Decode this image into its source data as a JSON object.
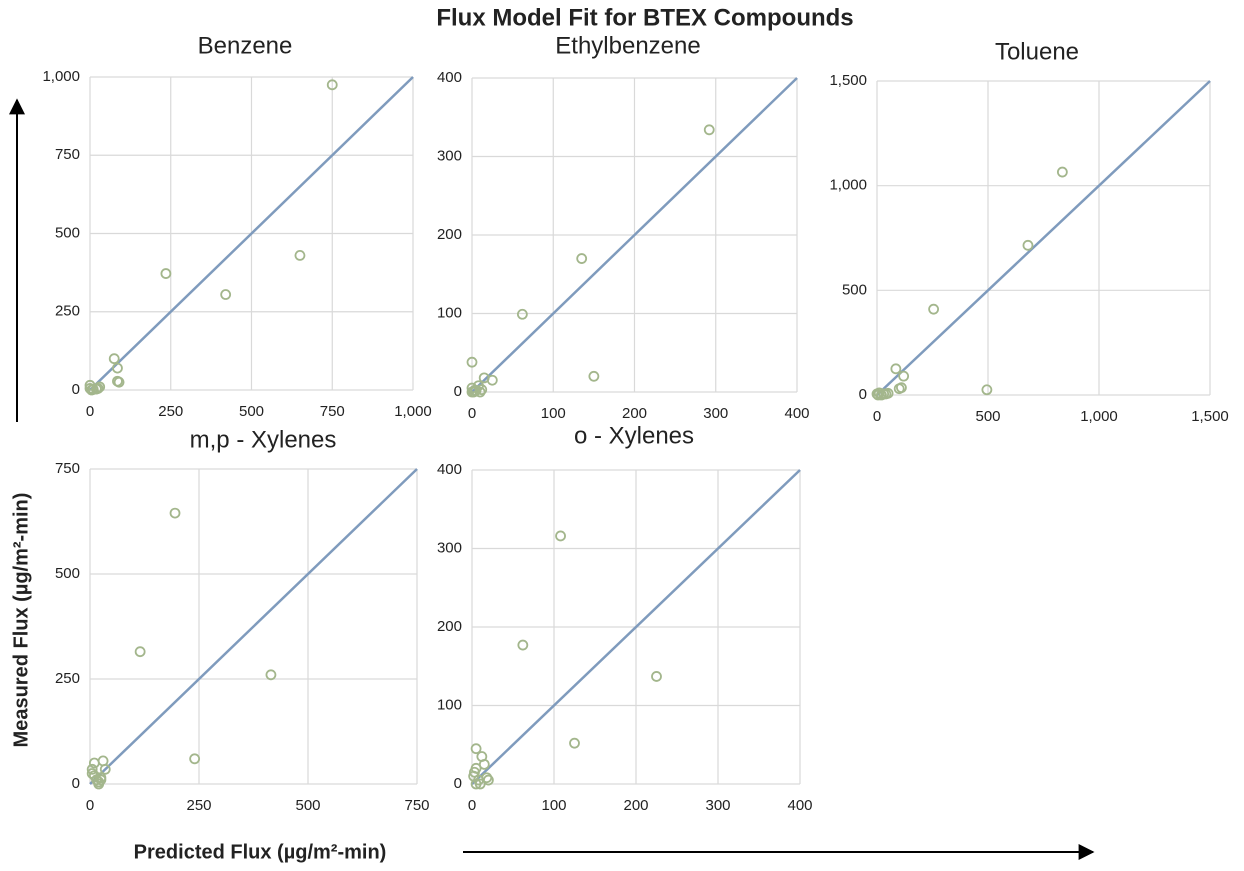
{
  "title": "Flux Model Fit for BTEX Compounds",
  "xlabel": "Predicted Flux (µg/m²-min)",
  "ylabel": "Measured Flux (µg/m²-min)",
  "chart_data": [
    {
      "type": "scatter",
      "title": "Benzene",
      "points": {
        "color": "#a3b68c",
        "x": [
          0,
          0,
          5,
          10,
          25,
          30,
          20,
          75,
          85,
          90,
          85,
          235,
          420,
          650,
          750
        ],
        "y": [
          15,
          5,
          0,
          2,
          5,
          10,
          3,
          100,
          70,
          25,
          28,
          372,
          305,
          430,
          975
        ]
      },
      "fit_line": {
        "color": "#7f9bbd",
        "x": [
          0,
          1000
        ],
        "y": [
          0,
          1000
        ]
      },
      "xlim": [
        0,
        1000
      ],
      "ylim": [
        0,
        1000
      ],
      "xticks": [
        0,
        250,
        500,
        750,
        {
          "value": 1000,
          "label": "1,000"
        }
      ],
      "yticks": [
        0,
        250,
        500,
        750,
        {
          "value": 1000,
          "label": "1,000"
        }
      ],
      "grid": true
    },
    {
      "type": "scatter",
      "title": "Ethylbenzene",
      "points": {
        "color": "#a3b68c",
        "x": [
          0,
          0,
          2,
          5,
          8,
          10,
          15,
          12,
          25,
          62,
          135,
          150,
          292,
          3,
          0
        ],
        "y": [
          38,
          5,
          0,
          2,
          8,
          0,
          18,
          3,
          15,
          99,
          170,
          20,
          334,
          2,
          0
        ]
      },
      "fit_line": {
        "color": "#7f9bbd",
        "x": [
          0,
          400
        ],
        "y": [
          0,
          400
        ]
      },
      "xlim": [
        0,
        400
      ],
      "ylim": [
        0,
        400
      ],
      "xticks": [
        0,
        100,
        200,
        300,
        400
      ],
      "yticks": [
        0,
        100,
        200,
        300,
        400
      ],
      "grid": true
    },
    {
      "type": "scatter",
      "title": "Toluene",
      "points": {
        "color": "#a3b68c",
        "x": [
          0,
          10,
          20,
          30,
          40,
          50,
          85,
          100,
          110,
          120,
          255,
          495,
          680,
          835,
          5
        ],
        "y": [
          5,
          10,
          0,
          5,
          5,
          8,
          125,
          30,
          35,
          90,
          410,
          25,
          715,
          1065,
          0
        ]
      },
      "fit_line": {
        "color": "#7f9bbd",
        "x": [
          0,
          1500
        ],
        "y": [
          0,
          1500
        ]
      },
      "xlim": [
        0,
        1500
      ],
      "ylim": [
        0,
        1500
      ],
      "xticks": [
        0,
        500,
        {
          "value": 1000,
          "label": "1,000"
        },
        {
          "value": 1500,
          "label": "1,500"
        }
      ],
      "yticks": [
        0,
        500,
        {
          "value": 1000,
          "label": "1,000"
        },
        {
          "value": 1500,
          "label": "1,500"
        }
      ],
      "grid": true
    },
    {
      "type": "scatter",
      "title": "m,p - Xylenes",
      "points": {
        "color": "#a3b68c",
        "x": [
          5,
          10,
          10,
          15,
          20,
          25,
          30,
          35,
          20,
          115,
          195,
          240,
          415,
          5,
          25
        ],
        "y": [
          35,
          50,
          20,
          10,
          5,
          15,
          55,
          35,
          0,
          315,
          645,
          60,
          260,
          25,
          10
        ]
      },
      "fit_line": {
        "color": "#7f9bbd",
        "x": [
          0,
          750
        ],
        "y": [
          0,
          750
        ]
      },
      "xlim": [
        0,
        750
      ],
      "ylim": [
        0,
        750
      ],
      "xticks": [
        0,
        250,
        500,
        750
      ],
      "yticks": [
        0,
        250,
        500,
        750
      ],
      "grid": true
    },
    {
      "type": "scatter",
      "title": "o - Xylenes",
      "points": {
        "color": "#a3b68c",
        "x": [
          2,
          5,
          5,
          8,
          10,
          12,
          15,
          18,
          20,
          62,
          108,
          125,
          225,
          5,
          3
        ],
        "y": [
          10,
          45,
          20,
          5,
          0,
          35,
          25,
          8,
          5,
          177,
          316,
          52,
          137,
          0,
          15
        ]
      },
      "fit_line": {
        "color": "#7f9bbd",
        "x": [
          0,
          400
        ],
        "y": [
          0,
          400
        ]
      },
      "xlim": [
        0,
        400
      ],
      "ylim": [
        0,
        400
      ],
      "xticks": [
        0,
        100,
        200,
        300,
        400
      ],
      "yticks": [
        0,
        100,
        200,
        300,
        400
      ],
      "grid": true
    }
  ]
}
